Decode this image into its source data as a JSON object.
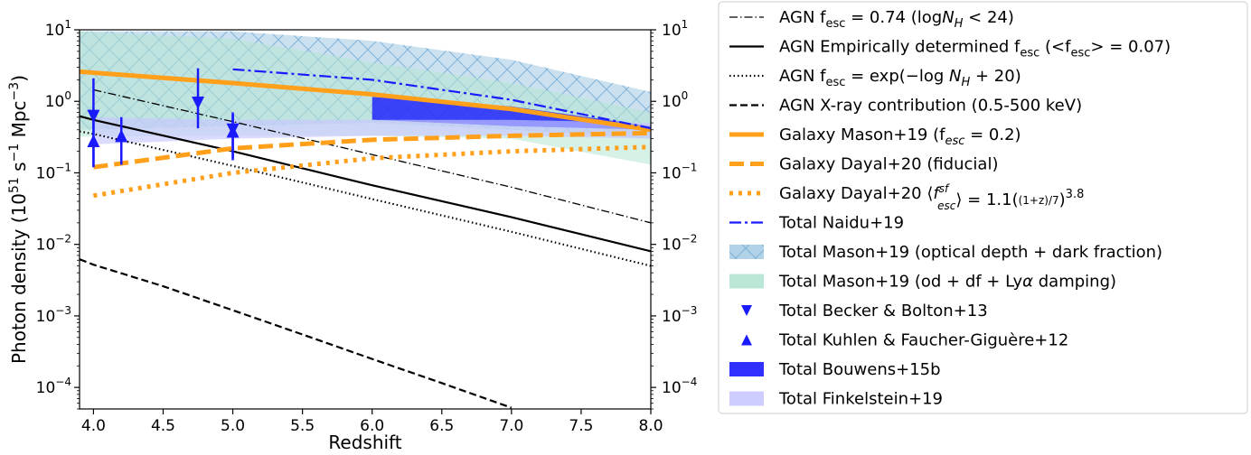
{
  "chart_data": {
    "type": "line",
    "title": "",
    "xlabel": "Redshift",
    "ylabel": "Photon density (10^51 s^-1 Mpc^-3)",
    "y_scale": "log",
    "xlim": [
      3.9,
      8.0
    ],
    "ylim": [
      5e-05,
      10
    ],
    "x_ticks": [
      4.0,
      4.5,
      5.0,
      5.5,
      6.0,
      6.5,
      7.0,
      7.5,
      8.0
    ],
    "x_tick_labels": [
      "4.0",
      "4.5",
      "5.0",
      "5.5",
      "6.0",
      "6.5",
      "7.0",
      "7.5",
      "8.0"
    ],
    "y_ticks": [
      0.0001,
      0.001,
      0.01,
      0.1,
      1,
      10
    ],
    "y_tick_labels": [
      {
        "base": "10",
        "exp": "−4"
      },
      {
        "base": "10",
        "exp": "−3"
      },
      {
        "base": "10",
        "exp": "−2"
      },
      {
        "base": "10",
        "exp": "−1"
      },
      {
        "base": "10",
        "exp": "0"
      },
      {
        "base": "10",
        "exp": "1"
      }
    ],
    "right_axis_labels": true,
    "grid": false,
    "legend_placement": "outside-right",
    "series": [
      {
        "name": "AGN f_esc = 0.74 (logN_H < 24)",
        "style": "dashdot-thin",
        "color": "#000000",
        "x": [
          4.0,
          5.0,
          6.0,
          7.0,
          8.0
        ],
        "y": [
          1.45,
          0.52,
          0.18,
          0.063,
          0.02
        ]
      },
      {
        "name": "AGN Empirically determined f_esc (<f_esc> = 0.07)",
        "style": "solid",
        "color": "#000000",
        "x": [
          3.9,
          4.0,
          5.0,
          6.0,
          7.0,
          8.0
        ],
        "y": [
          0.62,
          0.55,
          0.2,
          0.067,
          0.024,
          0.008
        ]
      },
      {
        "name": "AGN f_esc = exp(−log N_H + 20)",
        "style": "dotted",
        "color": "#000000",
        "x": [
          3.9,
          4.0,
          5.0,
          6.0,
          7.0,
          8.0
        ],
        "y": [
          0.38,
          0.35,
          0.125,
          0.043,
          0.015,
          0.005
        ]
      },
      {
        "name": "AGN X-ray contribution (0.5-500 keV)",
        "style": "dashed",
        "color": "#000000",
        "x": [
          3.9,
          4.0,
          4.5,
          5.0,
          5.5,
          6.0,
          6.5,
          7.0
        ],
        "y": [
          0.0062,
          0.0052,
          0.0026,
          0.0012,
          0.00055,
          0.00025,
          0.000115,
          5.2e-05
        ]
      },
      {
        "name": "Galaxy Mason+19 (f_esc = 0.2)",
        "style": "solid-thick",
        "color": "#ff9f1a",
        "x": [
          3.9,
          5.0,
          6.0,
          7.0,
          8.0
        ],
        "y": [
          2.6,
          1.8,
          1.25,
          0.78,
          0.4
        ]
      },
      {
        "name": "Galaxy Dayal+20 (fiducial)",
        "style": "dashed-thick",
        "color": "#ff9f1a",
        "x": [
          4.0,
          5.0,
          6.0,
          7.0,
          8.0
        ],
        "y": [
          0.12,
          0.22,
          0.29,
          0.33,
          0.36
        ]
      },
      {
        "name": "Galaxy Dayal+20 <f_esc^sf> = 1.1((1+z)/7)^3.8",
        "style": "dotted-thick",
        "color": "#ff9f1a",
        "x": [
          4.0,
          5.0,
          6.0,
          7.0,
          8.0
        ],
        "y": [
          0.048,
          0.1,
          0.16,
          0.2,
          0.23
        ]
      },
      {
        "name": "Total Naidu+19",
        "style": "dashdot",
        "color": "#1a1aff",
        "x": [
          5.0,
          6.0,
          7.0,
          8.0
        ],
        "y": [
          2.8,
          2.0,
          1.05,
          0.42
        ]
      }
    ],
    "bands": [
      {
        "name": "Total Mason+19 (optical depth + dark fraction)",
        "color": "#aacde6",
        "hatch": "x",
        "x": [
          3.9,
          5.0,
          6.0,
          7.0,
          8.0
        ],
        "y_low": [
          0.4,
          0.45,
          0.5,
          0.4,
          0.3
        ],
        "y_high": [
          9.5,
          9.5,
          7.0,
          3.8,
          1.35
        ]
      },
      {
        "name": "Total Mason+19 (od + df + Lyα damping)",
        "color": "#b4e6d2",
        "hatch": "none",
        "x": [
          3.9,
          5.0,
          6.0,
          7.0,
          8.0
        ],
        "y_low": [
          0.32,
          0.33,
          0.33,
          0.3,
          0.13
        ],
        "y_high": [
          9.5,
          7.5,
          3.5,
          1.8,
          0.7
        ]
      },
      {
        "name": "Total Bouwens+15b",
        "color": "#1a1aff",
        "x": [
          6.0,
          7.0,
          8.0
        ],
        "y_low": [
          0.55,
          0.45,
          0.4
        ],
        "y_high": [
          1.15,
          0.85,
          0.45
        ]
      },
      {
        "name": "Total Finkelstein+19",
        "color": "#c8c8ff",
        "x": [
          4.0,
          5.0,
          6.0,
          7.0,
          8.0
        ],
        "y_low": [
          0.25,
          0.3,
          0.33,
          0.33,
          0.3
        ],
        "y_high": [
          0.6,
          0.55,
          0.55,
          0.55,
          0.5
        ]
      }
    ],
    "points": [
      {
        "name": "Total Becker & Bolton+13",
        "marker": "triangle-down",
        "color": "#1a1aff",
        "x": [
          4.0,
          4.75,
          5.0
        ],
        "y": [
          0.62,
          0.95,
          0.4
        ],
        "y_low": [
          0.12,
          0.42,
          0.16
        ],
        "y_high": [
          2.1,
          2.9,
          0.7
        ]
      },
      {
        "name": "Total Kuhlen & Faucher-Giguère+12",
        "marker": "triangle-up",
        "color": "#1a1aff",
        "x": [
          4.0,
          4.2,
          5.0
        ],
        "y": [
          0.28,
          0.33,
          0.38
        ],
        "y_low": [
          0.12,
          0.13,
          0.15
        ],
        "y_high": [
          0.6,
          0.6,
          0.65
        ]
      }
    ]
  },
  "legend": {
    "items": [
      {
        "label": "AGN f_esc = 0.74 (logN_H < 24)"
      },
      {
        "label": "AGN Empirically determined f_esc (<f_esc> = 0.07)"
      },
      {
        "label": "AGN f_esc = exp(−log N_H + 20)"
      },
      {
        "label": "AGN X-ray contribution (0.5-500 keV)"
      },
      {
        "label": "Galaxy Mason+19 (f_esc = 0.2)"
      },
      {
        "label": "Galaxy Dayal+20 (fiducial)"
      },
      {
        "label": "Galaxy Dayal+20 <f_esc^sf> = 1.1((1+z)/7)^3.8"
      },
      {
        "label": "Total Naidu+19"
      },
      {
        "label": "Total Mason+19 (optical depth + dark fraction)"
      },
      {
        "label": "Total Mason+19 (od + df + Lyα damping)"
      },
      {
        "label": "Total Becker & Bolton+13"
      },
      {
        "label": "Total Kuhlen & Faucher-Giguère+12"
      },
      {
        "label": "Total Bouwens+15b"
      },
      {
        "label": "Total Finkelstein+19"
      }
    ]
  }
}
